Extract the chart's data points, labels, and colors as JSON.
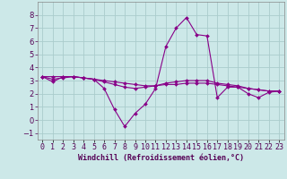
{
  "xlabel": "Windchill (Refroidissement éolien,°C)",
  "bg_color": "#cce8e8",
  "grid_color": "#aacccc",
  "line_color": "#880088",
  "spine_color": "#888888",
  "x_hours": [
    0,
    1,
    2,
    3,
    4,
    5,
    6,
    7,
    8,
    9,
    10,
    11,
    12,
    13,
    14,
    15,
    16,
    17,
    18,
    19,
    20,
    21,
    22,
    23
  ],
  "windchill": [
    3.3,
    2.9,
    3.3,
    3.3,
    3.2,
    3.1,
    2.4,
    0.8,
    -0.5,
    0.5,
    1.2,
    2.4,
    5.6,
    7.0,
    7.8,
    6.5,
    6.4,
    1.7,
    2.5,
    2.5,
    2.0,
    1.7,
    2.1,
    2.2
  ],
  "temp": [
    3.3,
    3.3,
    3.3,
    3.3,
    3.2,
    3.1,
    3.0,
    2.9,
    2.8,
    2.7,
    2.6,
    2.6,
    2.7,
    2.7,
    2.8,
    2.8,
    2.8,
    2.7,
    2.6,
    2.5,
    2.4,
    2.3,
    2.2,
    2.2
  ],
  "apparent": [
    3.3,
    3.1,
    3.2,
    3.3,
    3.2,
    3.1,
    2.9,
    2.7,
    2.5,
    2.4,
    2.5,
    2.6,
    2.8,
    2.9,
    3.0,
    3.0,
    3.0,
    2.8,
    2.7,
    2.6,
    2.4,
    2.3,
    2.2,
    2.2
  ],
  "ylim": [
    -1.5,
    9.0
  ],
  "yticks": [
    -1,
    0,
    1,
    2,
    3,
    4,
    5,
    6,
    7,
    8
  ],
  "xtick_labels": [
    "0",
    "1",
    "2",
    "3",
    "4",
    "5",
    "6",
    "7",
    "8",
    "9",
    "10",
    "11",
    "12",
    "13",
    "14",
    "15",
    "16",
    "17",
    "18",
    "19",
    "20",
    "21",
    "22",
    "23"
  ],
  "tick_fontsize": 6,
  "xlabel_fontsize": 6,
  "marker_size": 2.0,
  "line_width": 0.8
}
